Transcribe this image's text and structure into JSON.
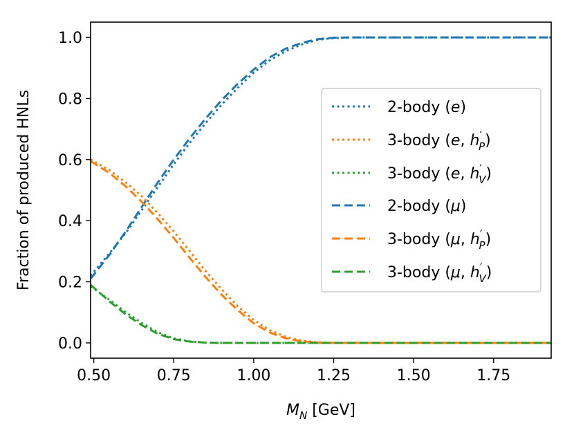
{
  "chart_data": {
    "type": "line",
    "xlabel_main": "M",
    "xlabel_sub": "N",
    "xlabel_unit": " [GeV]",
    "ylabel": "Fraction of produced HNLs",
    "xlim": [
      0.49,
      1.93
    ],
    "ylim": [
      -0.05,
      1.05
    ],
    "xticks": [
      0.5,
      0.75,
      1.0,
      1.25,
      1.5,
      1.75
    ],
    "xtick_labels": [
      "0.50",
      "0.75",
      "1.00",
      "1.25",
      "1.50",
      "1.75"
    ],
    "yticks": [
      0.0,
      0.2,
      0.4,
      0.6,
      0.8,
      1.0
    ],
    "ytick_labels": [
      "0.0",
      "0.2",
      "0.4",
      "0.6",
      "0.8",
      "1.0"
    ],
    "legend_position": "center-right",
    "series": [
      {
        "name": "2-body (e)",
        "label_pre": "2-body (",
        "label_var": "e",
        "label_post": ")",
        "color": "#1f77b4",
        "style": "dotted",
        "x": [
          0.49,
          0.55,
          0.6,
          0.65,
          0.7,
          0.75,
          0.8,
          0.85,
          0.9,
          0.95,
          1.0,
          1.05,
          1.1,
          1.15,
          1.2,
          1.25,
          1.3,
          1.4,
          1.5,
          1.6,
          1.7,
          1.8,
          1.93
        ],
        "y": [
          0.22,
          0.295,
          0.36,
          0.435,
          0.51,
          0.585,
          0.655,
          0.72,
          0.78,
          0.835,
          0.885,
          0.925,
          0.955,
          0.977,
          0.992,
          0.998,
          1.0,
          1.0,
          1.0,
          1.0,
          1.0,
          1.0,
          1.0
        ]
      },
      {
        "name": "3-body (e, h'P)",
        "label_pre": "3-body (",
        "label_var": "e",
        "label_mid": ", ",
        "label_h": "h",
        "label_sup": "′",
        "label_sub": "P",
        "label_post": ")",
        "color": "#ff7f0e",
        "style": "dotted",
        "x": [
          0.49,
          0.55,
          0.6,
          0.65,
          0.7,
          0.75,
          0.8,
          0.85,
          0.9,
          0.95,
          1.0,
          1.05,
          1.1,
          1.15,
          1.2,
          1.25,
          1.3,
          1.4,
          1.5,
          1.6,
          1.7,
          1.8,
          1.93
        ],
        "y": [
          0.6,
          0.565,
          0.525,
          0.48,
          0.425,
          0.365,
          0.3,
          0.235,
          0.175,
          0.12,
          0.075,
          0.042,
          0.02,
          0.007,
          0.002,
          0.0,
          0.0,
          0.0,
          0.0,
          0.0,
          0.0,
          0.0,
          0.0
        ]
      },
      {
        "name": "3-body (e, h'V)",
        "label_pre": "3-body (",
        "label_var": "e",
        "label_mid": ", ",
        "label_h": "h",
        "label_sup": "′",
        "label_sub": "V",
        "label_post": ")",
        "color": "#2ca02c",
        "style": "dotted",
        "x": [
          0.49,
          0.55,
          0.6,
          0.65,
          0.7,
          0.75,
          0.8,
          0.85,
          0.9,
          0.95,
          1.0,
          1.1,
          1.2,
          1.3,
          1.4,
          1.5,
          1.6,
          1.7,
          1.8,
          1.93
        ],
        "y": [
          0.185,
          0.14,
          0.1,
          0.065,
          0.035,
          0.015,
          0.005,
          0.001,
          0.0,
          0.0,
          0.0,
          0.0,
          0.0,
          0.0,
          0.0,
          0.0,
          0.0,
          0.0,
          0.0,
          0.0
        ]
      },
      {
        "name": "2-body (μ)",
        "label_pre": "2-body (",
        "label_var": "μ",
        "label_post": ")",
        "color": "#1f77b4",
        "style": "dashed",
        "x": [
          0.49,
          0.55,
          0.6,
          0.65,
          0.7,
          0.75,
          0.8,
          0.85,
          0.9,
          0.95,
          1.0,
          1.05,
          1.1,
          1.15,
          1.2,
          1.25,
          1.3,
          1.4,
          1.5,
          1.6,
          1.7,
          1.8,
          1.93
        ],
        "y": [
          0.21,
          0.29,
          0.365,
          0.445,
          0.525,
          0.6,
          0.67,
          0.735,
          0.795,
          0.848,
          0.895,
          0.935,
          0.963,
          0.982,
          0.994,
          0.999,
          1.0,
          1.0,
          1.0,
          1.0,
          1.0,
          1.0,
          1.0
        ]
      },
      {
        "name": "3-body (μ, h'P)",
        "label_pre": "3-body (",
        "label_var": "μ",
        "label_mid": ", ",
        "label_h": "h",
        "label_sup": "′",
        "label_sub": "P",
        "label_post": ")",
        "color": "#ff7f0e",
        "style": "dashed",
        "x": [
          0.49,
          0.55,
          0.6,
          0.65,
          0.7,
          0.75,
          0.8,
          0.85,
          0.9,
          0.95,
          1.0,
          1.05,
          1.1,
          1.15,
          1.2,
          1.25,
          1.3,
          1.4,
          1.5,
          1.6,
          1.7,
          1.8,
          1.93
        ],
        "y": [
          0.595,
          0.555,
          0.512,
          0.462,
          0.405,
          0.343,
          0.278,
          0.215,
          0.157,
          0.107,
          0.064,
          0.034,
          0.015,
          0.005,
          0.001,
          0.0,
          0.0,
          0.0,
          0.0,
          0.0,
          0.0,
          0.0,
          0.0
        ]
      },
      {
        "name": "3-body (μ, h'V)",
        "label_pre": "3-body (",
        "label_var": "μ",
        "label_mid": ", ",
        "label_h": "h",
        "label_sup": "′",
        "label_sub": "V",
        "label_post": ")",
        "color": "#2ca02c",
        "style": "dashed",
        "x": [
          0.49,
          0.55,
          0.6,
          0.65,
          0.7,
          0.75,
          0.8,
          0.85,
          0.9,
          0.95,
          1.0,
          1.1,
          1.2,
          1.3,
          1.4,
          1.5,
          1.6,
          1.7,
          1.8,
          1.93
        ],
        "y": [
          0.19,
          0.135,
          0.093,
          0.058,
          0.03,
          0.012,
          0.004,
          0.001,
          0.0,
          0.0,
          0.0,
          0.0,
          0.0,
          0.0,
          0.0,
          0.0,
          0.0,
          0.0,
          0.0,
          0.0
        ]
      }
    ]
  }
}
